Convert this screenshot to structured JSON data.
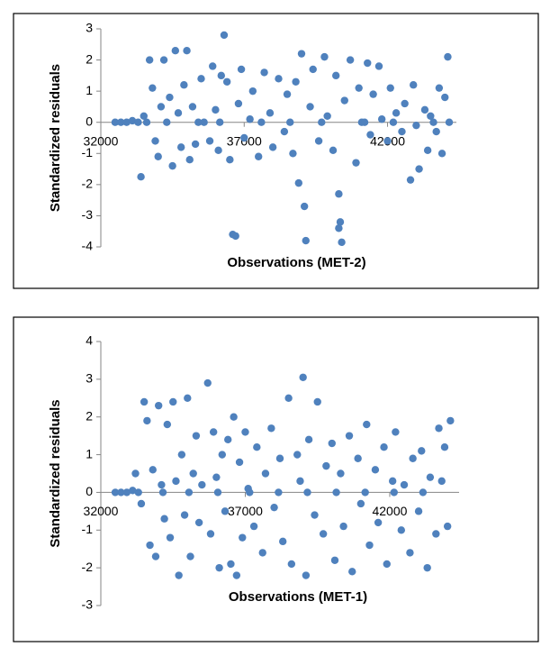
{
  "chart_data": [
    {
      "type": "scatter",
      "xlabel": "Observations (MET-2)",
      "ylabel": "Standardized residuals",
      "color": "#4f81bd",
      "xlim": [
        32000,
        44400
      ],
      "ylim": [
        -4,
        3
      ],
      "xticks": [
        32000,
        37000,
        42000
      ],
      "yticks": [
        -4,
        -3,
        -2,
        -1,
        0,
        1,
        2,
        3
      ],
      "x": [
        32500,
        32700,
        32900,
        33100,
        33300,
        33500,
        33400,
        33700,
        33800,
        33900,
        34000,
        34100,
        34200,
        34400,
        34500,
        34600,
        34700,
        34800,
        34900,
        35000,
        35100,
        35200,
        35300,
        35500,
        35600,
        35800,
        35900,
        36000,
        36100,
        36200,
        36300,
        36400,
        36500,
        36600,
        36700,
        36800,
        36900,
        37000,
        37200,
        37300,
        37500,
        37700,
        37900,
        38000,
        38200,
        38400,
        38500,
        38700,
        38800,
        38900,
        39000,
        39100,
        39150,
        39300,
        39400,
        39600,
        39800,
        39900,
        40100,
        40200,
        40300,
        40350,
        40400,
        40300,
        40500,
        40700,
        40900,
        41000,
        41100,
        41300,
        41400,
        41500,
        41700,
        41800,
        42000,
        42100,
        42300,
        42500,
        42600,
        42800,
        42900,
        43000,
        43100,
        43300,
        43400,
        43500,
        43700,
        43800,
        43900,
        44000,
        44100,
        44150,
        33600,
        34300,
        35400,
        36150,
        37600,
        38600,
        39700,
        41200,
        42200,
        43600
      ],
      "y": [
        0,
        0,
        0,
        0.05,
        0,
        0.2,
        -1.75,
        2.0,
        1.1,
        -0.6,
        -1.1,
        0.5,
        2.0,
        0.8,
        -1.4,
        2.3,
        0.3,
        -0.8,
        1.2,
        2.3,
        -1.2,
        0.5,
        -0.7,
        1.4,
        0,
        -0.6,
        1.8,
        0.4,
        -0.9,
        1.5,
        2.8,
        1.3,
        -1.2,
        -3.6,
        -3.65,
        0.6,
        1.7,
        -0.5,
        0.1,
        1.0,
        -1.1,
        1.6,
        0.3,
        -0.8,
        1.4,
        -0.3,
        0.9,
        -1.0,
        1.3,
        -1.95,
        2.2,
        -2.7,
        -3.8,
        0.5,
        1.7,
        -0.6,
        2.1,
        0.2,
        -0.9,
        1.5,
        -2.3,
        -3.2,
        -3.85,
        -3.4,
        0.7,
        2.0,
        -1.3,
        1.1,
        0,
        1.9,
        -0.4,
        0.9,
        1.8,
        0.1,
        -0.6,
        1.1,
        0.3,
        -0.3,
        0.6,
        -1.85,
        1.2,
        -0.1,
        -1.5,
        0.4,
        -0.9,
        0.2,
        -0.3,
        1.1,
        -1.0,
        0.8,
        2.1,
        0,
        0,
        0,
        0,
        0,
        0,
        0,
        0,
        0,
        0,
        0
      ]
    },
    {
      "type": "scatter",
      "xlabel": "Observations (MET-1)",
      "ylabel": "Standardized residuals",
      "color": "#4f81bd",
      "xlim": [
        32000,
        44400
      ],
      "ylim": [
        -3,
        4
      ],
      "xticks": [
        32000,
        37000,
        42000
      ],
      "yticks": [
        -3,
        -2,
        -1,
        0,
        1,
        2,
        3,
        4
      ],
      "x": [
        32500,
        32700,
        32900,
        33100,
        33200,
        33400,
        33500,
        33600,
        33700,
        33800,
        33900,
        34000,
        34100,
        34200,
        34300,
        34400,
        34500,
        34600,
        34700,
        34800,
        34900,
        35000,
        35100,
        35200,
        35300,
        35400,
        35500,
        35700,
        35800,
        35900,
        36000,
        36100,
        36200,
        36300,
        36400,
        36500,
        36600,
        36700,
        36800,
        36900,
        37000,
        37100,
        37300,
        37400,
        37600,
        37700,
        37900,
        38000,
        38200,
        38300,
        38500,
        38600,
        38800,
        38900,
        39000,
        39100,
        39200,
        39400,
        39500,
        39700,
        39800,
        40000,
        40100,
        40300,
        40400,
        40600,
        40700,
        40900,
        41000,
        41200,
        41300,
        41500,
        41600,
        41800,
        41900,
        42100,
        42200,
        42400,
        42500,
        42700,
        42800,
        43000,
        43100,
        43300,
        43400,
        43600,
        43700,
        43800,
        43900,
        44000,
        44100,
        33300,
        34150,
        35050,
        36050,
        37150,
        38150,
        39150,
        40150,
        41150,
        42150,
        43150
      ],
      "y": [
        0,
        0,
        0,
        0.05,
        0.5,
        -0.3,
        2.4,
        1.9,
        -1.4,
        0.6,
        -1.7,
        2.3,
        0.2,
        -0.7,
        1.8,
        -1.2,
        2.4,
        0.3,
        -2.2,
        1.0,
        -0.6,
        2.5,
        -1.7,
        0.5,
        1.5,
        -0.8,
        0.2,
        2.9,
        -1.1,
        1.6,
        0.4,
        -2.0,
        1.0,
        -0.5,
        1.4,
        -1.9,
        2.0,
        -2.2,
        0.8,
        -1.2,
        1.6,
        0.1,
        -0.9,
        1.2,
        -1.6,
        0.5,
        1.7,
        -0.4,
        0.9,
        -1.3,
        2.5,
        -1.9,
        1.0,
        0.3,
        3.05,
        -2.2,
        1.4,
        -0.6,
        2.4,
        -1.1,
        0.7,
        1.3,
        -1.8,
        0.5,
        -0.9,
        1.5,
        -2.1,
        0.9,
        -0.3,
        1.8,
        -1.4,
        0.6,
        -0.8,
        1.2,
        -1.9,
        0.3,
        1.6,
        -1.0,
        0.2,
        -1.6,
        0.9,
        -0.5,
        1.1,
        -2.0,
        0.4,
        -1.1,
        1.7,
        0.3,
        1.2,
        -0.9,
        1.9,
        0,
        0,
        0,
        0,
        0,
        0,
        0,
        0,
        0,
        0,
        0
      ]
    }
  ]
}
